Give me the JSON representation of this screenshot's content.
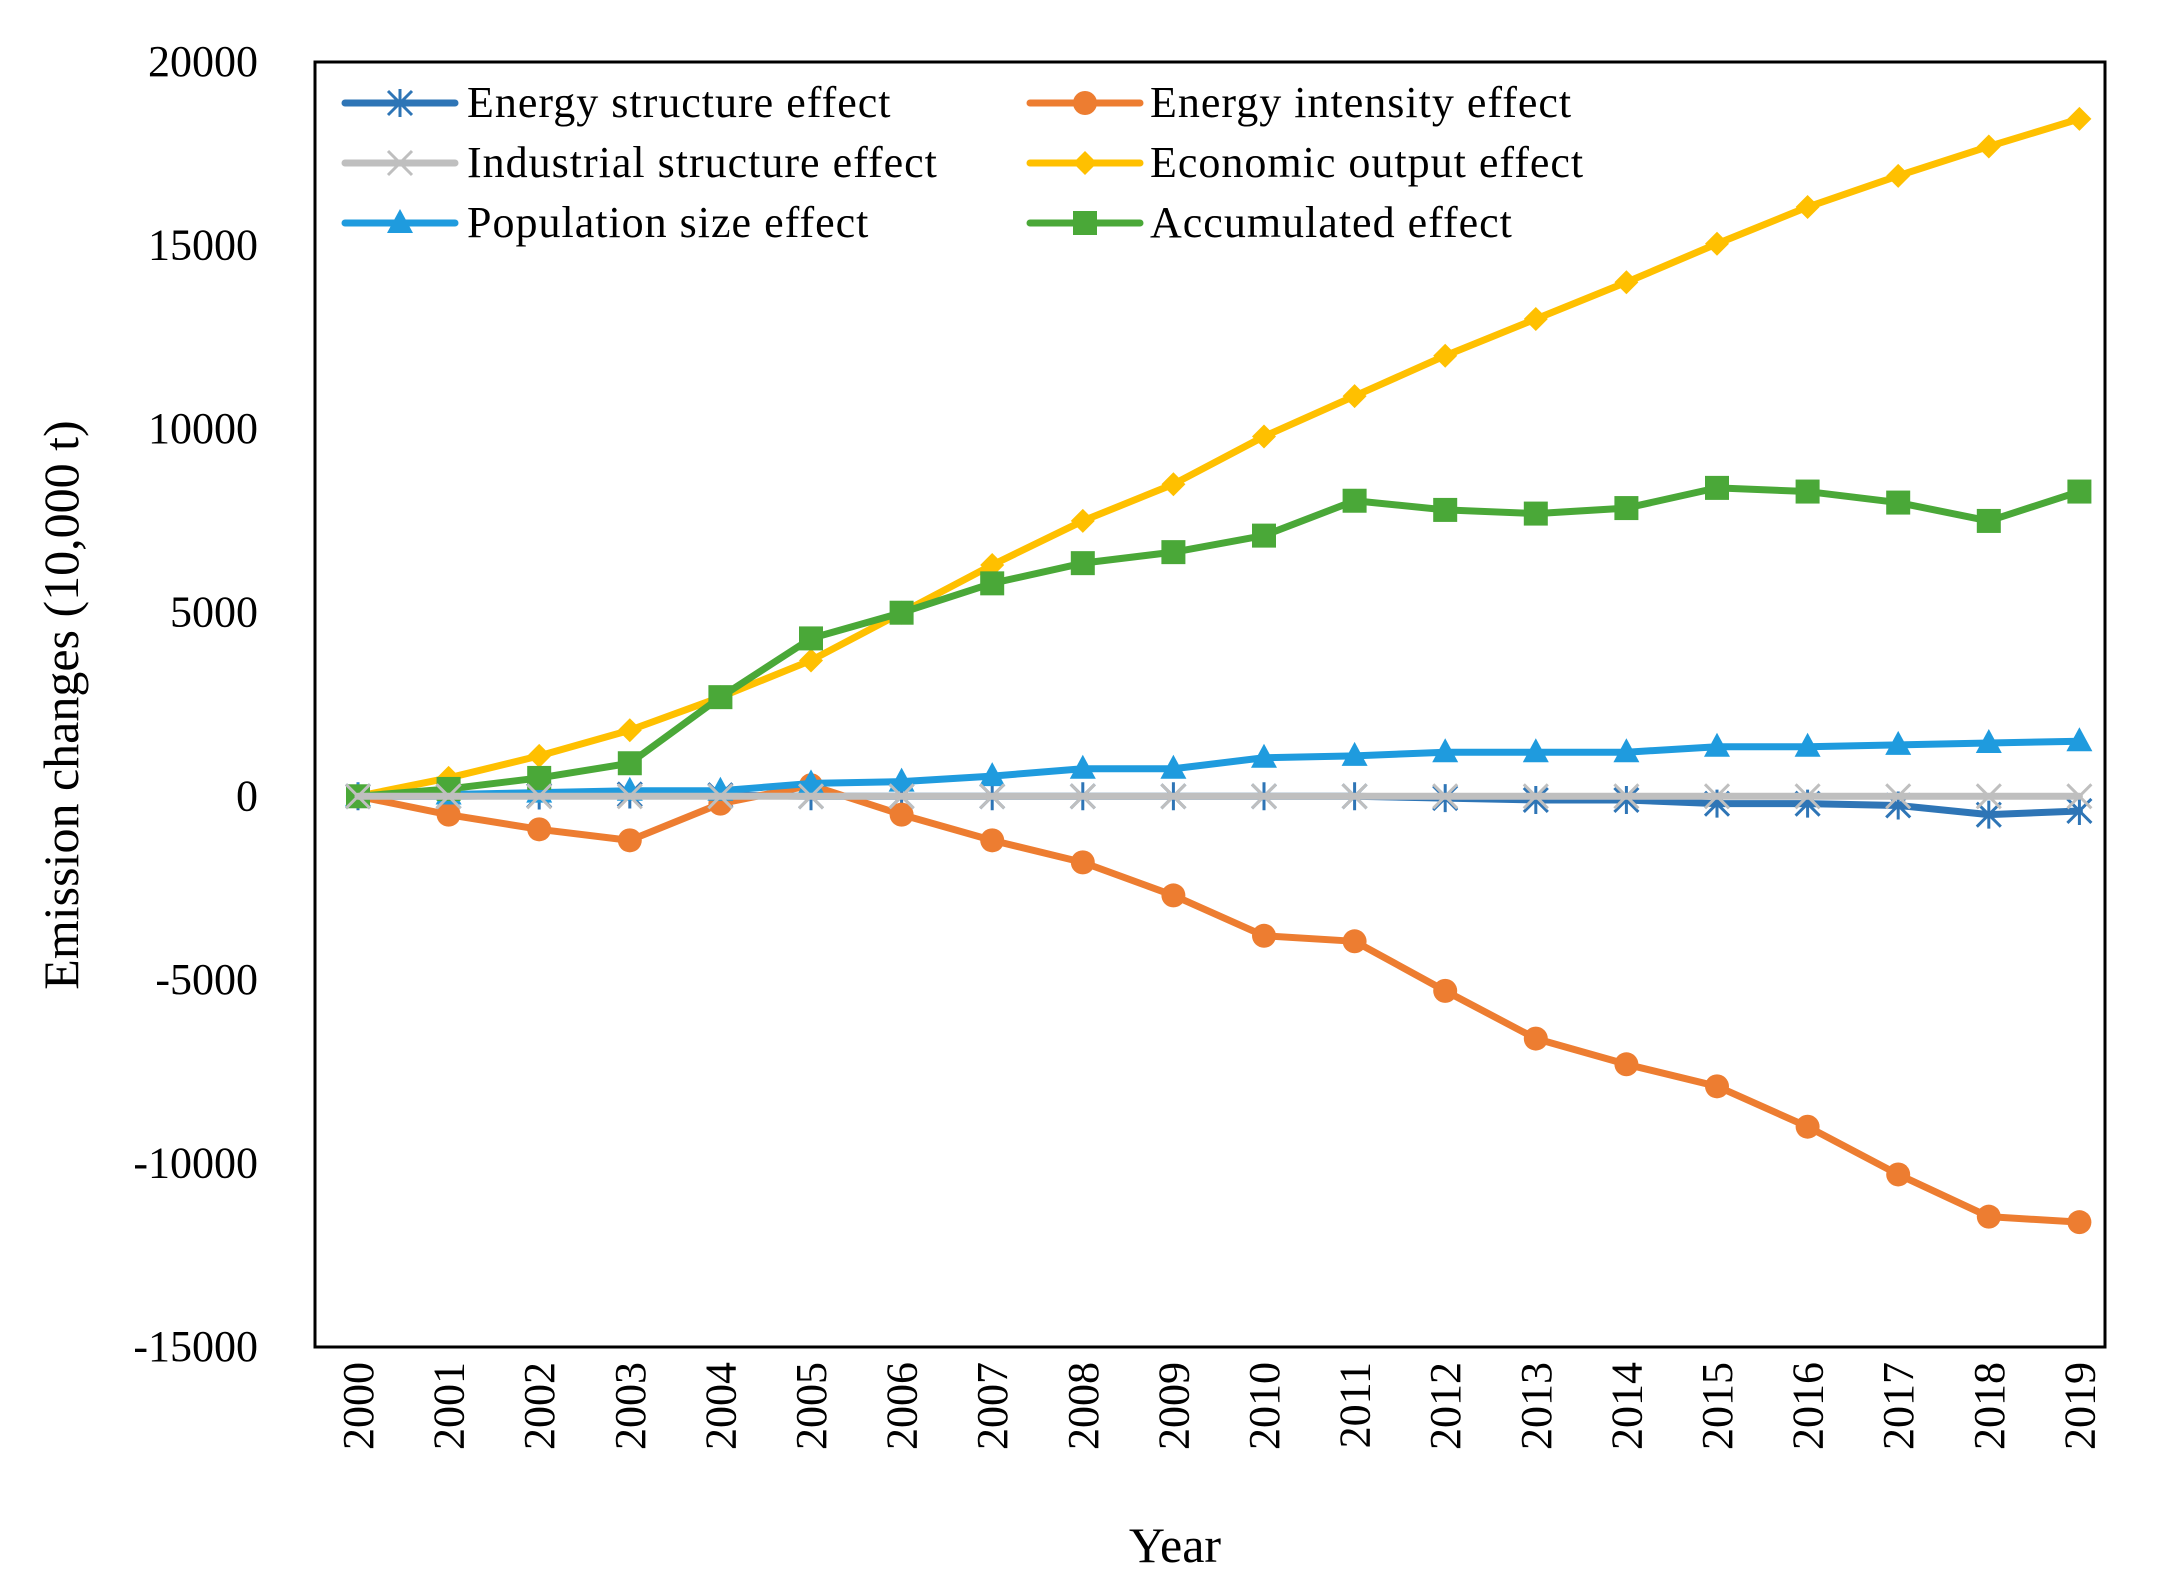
{
  "chart_data": {
    "type": "line",
    "title": "",
    "xlabel": "Year",
    "ylabel": "Emission changes (10,000 t)",
    "ylim": [
      -15000,
      20000
    ],
    "yticks": [
      20000,
      15000,
      10000,
      5000,
      0,
      -5000,
      -10000,
      -15000
    ],
    "grid": false,
    "legend_position": "top-left",
    "categories": [
      "2000",
      "2001",
      "2002",
      "2003",
      "2004",
      "2005",
      "2006",
      "2007",
      "2008",
      "2009",
      "2010",
      "2011",
      "2012",
      "2013",
      "2014",
      "2015",
      "2016",
      "2017",
      "2018",
      "2019"
    ],
    "series": [
      {
        "name": "Energy structure effect",
        "color": "#2E75B6",
        "marker": "asterisk",
        "values": [
          0,
          0,
          20,
          50,
          30,
          0,
          0,
          0,
          0,
          0,
          0,
          0,
          -50,
          -100,
          -100,
          -200,
          -200,
          -250,
          -500,
          -400
        ]
      },
      {
        "name": "Energy intensity effect",
        "color": "#ED7D31",
        "marker": "circle",
        "values": [
          0,
          -500,
          -900,
          -1200,
          -200,
          300,
          -500,
          -1200,
          -1800,
          -2700,
          -3800,
          -3950,
          -5300,
          -6600,
          -7300,
          -7900,
          -9000,
          -10300,
          -11450,
          -11600
        ]
      },
      {
        "name": "Industrial structure effect",
        "color": "#BFBFBF",
        "marker": "x",
        "values": [
          0,
          0,
          0,
          0,
          0,
          0,
          0,
          0,
          0,
          0,
          0,
          0,
          0,
          0,
          0,
          0,
          0,
          0,
          0,
          0
        ]
      },
      {
        "name": "Economic output effect",
        "color": "#FFC000",
        "marker": "diamond",
        "values": [
          0,
          500,
          1100,
          1800,
          2700,
          3700,
          5000,
          6300,
          7500,
          8500,
          9800,
          10900,
          12000,
          13000,
          14000,
          15050,
          16050,
          16900,
          17700,
          18450
        ]
      },
      {
        "name": "Population size effect",
        "color": "#1F9BDE",
        "marker": "triangle",
        "values": [
          0,
          50,
          100,
          150,
          150,
          350,
          400,
          550,
          750,
          750,
          1050,
          1100,
          1200,
          1200,
          1200,
          1350,
          1350,
          1400,
          1450,
          1500
        ]
      },
      {
        "name": "Accumulated effect",
        "color": "#4AA838",
        "marker": "square",
        "values": [
          0,
          200,
          500,
          900,
          2700,
          4300,
          5000,
          5800,
          6350,
          6650,
          7100,
          8050,
          7800,
          7700,
          7850,
          8400,
          8300,
          8000,
          7500,
          8300
        ]
      }
    ]
  }
}
